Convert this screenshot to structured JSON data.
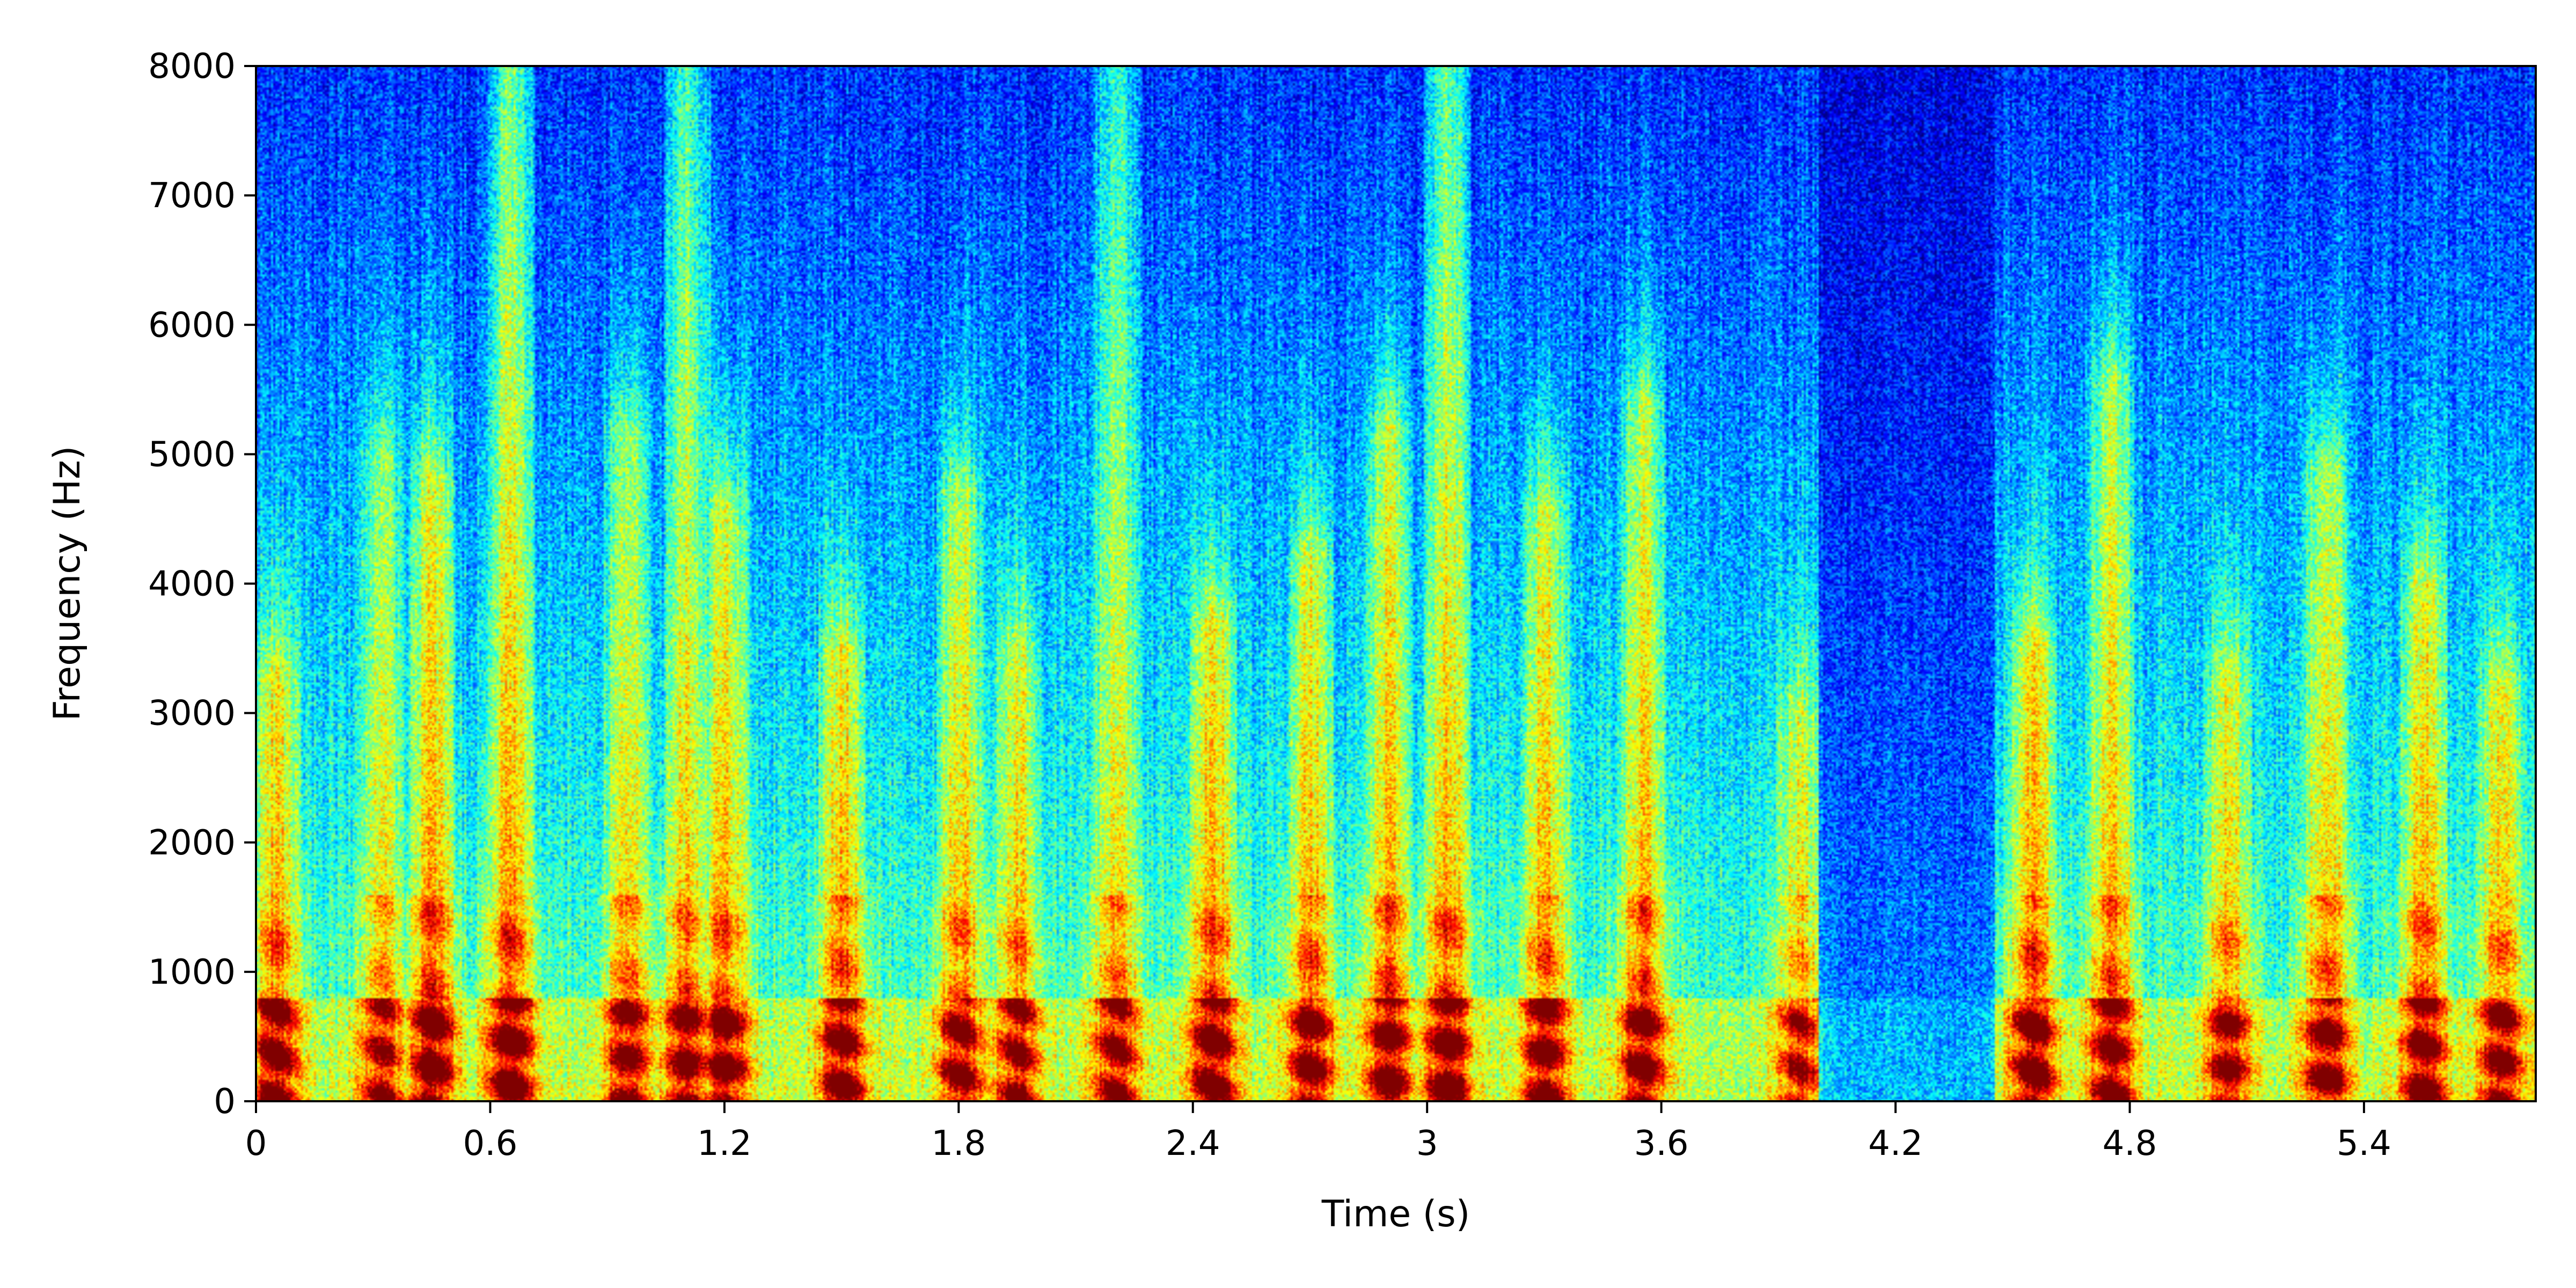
{
  "chart_data": {
    "type": "heatmap",
    "title": "",
    "xlabel": "Time (s)",
    "ylabel": "Frequency (Hz)",
    "xlim": [
      0,
      5.84
    ],
    "ylim": [
      0,
      8000
    ],
    "x_ticks": [
      {
        "value": 0,
        "label": "0"
      },
      {
        "value": 0.6,
        "label": "0.6"
      },
      {
        "value": 1.2,
        "label": "1.2"
      },
      {
        "value": 1.8,
        "label": "1.8"
      },
      {
        "value": 2.4,
        "label": "2.4"
      },
      {
        "value": 3.0,
        "label": "3"
      },
      {
        "value": 3.6,
        "label": "3.6"
      },
      {
        "value": 4.2,
        "label": "4.2"
      },
      {
        "value": 4.8,
        "label": "4.8"
      },
      {
        "value": 5.4,
        "label": "5.4"
      }
    ],
    "y_ticks": [
      {
        "value": 0,
        "label": "0"
      },
      {
        "value": 1000,
        "label": "1000"
      },
      {
        "value": 2000,
        "label": "2000"
      },
      {
        "value": 3000,
        "label": "3000"
      },
      {
        "value": 4000,
        "label": "4000"
      },
      {
        "value": 5000,
        "label": "5000"
      },
      {
        "value": 6000,
        "label": "6000"
      },
      {
        "value": 7000,
        "label": "7000"
      },
      {
        "value": 8000,
        "label": "8000"
      }
    ],
    "colormap": "jet",
    "grid": false,
    "legend": "none",
    "description_note_free": true,
    "energy_bursts": [
      {
        "t": 0.05,
        "f_max": 3300,
        "level": 0.8
      },
      {
        "t": 0.32,
        "f_max": 5000,
        "level": 0.6
      },
      {
        "t": 0.45,
        "f_max": 4800,
        "level": 0.85
      },
      {
        "t": 0.65,
        "f_max": 8000,
        "level": 0.9
      },
      {
        "t": 0.95,
        "f_max": 5200,
        "level": 0.7
      },
      {
        "t": 1.1,
        "f_max": 8000,
        "level": 0.75
      },
      {
        "t": 1.2,
        "f_max": 4600,
        "level": 0.8
      },
      {
        "t": 1.5,
        "f_max": 3500,
        "level": 0.8
      },
      {
        "t": 1.8,
        "f_max": 4700,
        "level": 0.75
      },
      {
        "t": 1.95,
        "f_max": 3500,
        "level": 0.7
      },
      {
        "t": 2.2,
        "f_max": 8000,
        "level": 0.7
      },
      {
        "t": 2.45,
        "f_max": 3700,
        "level": 0.85
      },
      {
        "t": 2.7,
        "f_max": 4200,
        "level": 0.8
      },
      {
        "t": 2.9,
        "f_max": 5200,
        "level": 0.8
      },
      {
        "t": 3.05,
        "f_max": 8000,
        "level": 0.85
      },
      {
        "t": 3.3,
        "f_max": 4600,
        "level": 0.8
      },
      {
        "t": 3.55,
        "f_max": 5400,
        "level": 0.8
      },
      {
        "t": 3.95,
        "f_max": 3000,
        "level": 0.6
      },
      {
        "t": 4.55,
        "f_max": 3500,
        "level": 0.85
      },
      {
        "t": 4.75,
        "f_max": 5600,
        "level": 0.75
      },
      {
        "t": 5.05,
        "f_max": 3300,
        "level": 0.7
      },
      {
        "t": 5.3,
        "f_max": 4900,
        "level": 0.8
      },
      {
        "t": 5.55,
        "f_max": 4000,
        "level": 0.8
      },
      {
        "t": 5.75,
        "f_max": 3200,
        "level": 0.75
      }
    ]
  }
}
